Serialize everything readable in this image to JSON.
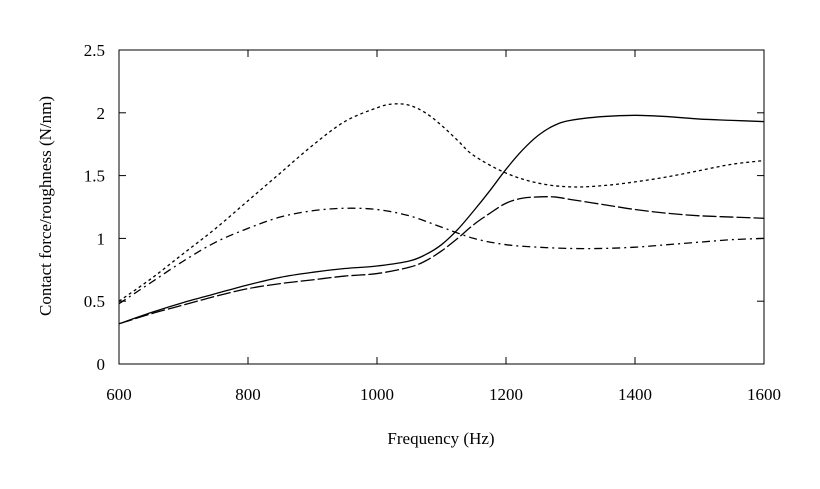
{
  "chart_data": {
    "type": "line",
    "title": "",
    "xlabel": "Frequency (Hz)",
    "ylabel": "Contact force/roughness (N/nm)",
    "xlim": [
      600,
      1600
    ],
    "ylim": [
      0,
      2.5
    ],
    "xticks": [
      600,
      800,
      1000,
      1200,
      1400,
      1600
    ],
    "yticks": [
      0,
      0.5,
      1,
      1.5,
      2,
      2.5
    ],
    "xtick_labels": [
      "600",
      "800",
      "1000",
      "1200",
      "1400",
      "1600"
    ],
    "ytick_labels": [
      "0",
      "0.5",
      "1",
      "1.5",
      "2",
      "2.5"
    ],
    "grid": false,
    "legend": "none",
    "series": [
      {
        "name": "solid",
        "style": "solid",
        "x": [
          600,
          650,
          700,
          750,
          800,
          850,
          900,
          950,
          1000,
          1050,
          1075,
          1100,
          1125,
          1150,
          1175,
          1200,
          1225,
          1250,
          1275,
          1300,
          1350,
          1400,
          1450,
          1500,
          1550,
          1600
        ],
        "y": [
          0.32,
          0.41,
          0.49,
          0.56,
          0.63,
          0.69,
          0.73,
          0.76,
          0.78,
          0.82,
          0.87,
          0.95,
          1.07,
          1.22,
          1.38,
          1.55,
          1.7,
          1.82,
          1.9,
          1.94,
          1.97,
          1.98,
          1.97,
          1.95,
          1.94,
          1.93
        ]
      },
      {
        "name": "long-dash",
        "style": "long-dash",
        "x": [
          600,
          650,
          700,
          750,
          800,
          850,
          900,
          950,
          1000,
          1050,
          1075,
          1100,
          1125,
          1150,
          1175,
          1200,
          1225,
          1250,
          1275,
          1300,
          1350,
          1400,
          1450,
          1500,
          1550,
          1600
        ],
        "y": [
          0.32,
          0.4,
          0.47,
          0.54,
          0.6,
          0.64,
          0.67,
          0.7,
          0.72,
          0.77,
          0.82,
          0.9,
          1.0,
          1.11,
          1.2,
          1.28,
          1.32,
          1.33,
          1.33,
          1.31,
          1.27,
          1.23,
          1.2,
          1.18,
          1.17,
          1.16
        ]
      },
      {
        "name": "dash-dot",
        "style": "dash-dot",
        "x": [
          600,
          650,
          700,
          750,
          800,
          850,
          900,
          950,
          1000,
          1050,
          1100,
          1150,
          1200,
          1250,
          1300,
          1350,
          1400,
          1450,
          1500,
          1550,
          1600
        ],
        "y": [
          0.48,
          0.65,
          0.82,
          0.97,
          1.08,
          1.17,
          1.22,
          1.24,
          1.23,
          1.18,
          1.09,
          1.0,
          0.95,
          0.93,
          0.92,
          0.92,
          0.93,
          0.95,
          0.97,
          0.99,
          1.0
        ]
      },
      {
        "name": "short-dash",
        "style": "short-dash",
        "x": [
          600,
          650,
          700,
          750,
          800,
          850,
          900,
          950,
          1000,
          1025,
          1050,
          1075,
          1100,
          1125,
          1150,
          1200,
          1250,
          1300,
          1350,
          1400,
          1450,
          1500,
          1550,
          1600
        ],
        "y": [
          0.5,
          0.68,
          0.88,
          1.08,
          1.3,
          1.52,
          1.74,
          1.93,
          2.04,
          2.07,
          2.06,
          2.0,
          1.9,
          1.78,
          1.66,
          1.52,
          1.44,
          1.41,
          1.42,
          1.45,
          1.49,
          1.54,
          1.59,
          1.62
        ]
      }
    ]
  }
}
